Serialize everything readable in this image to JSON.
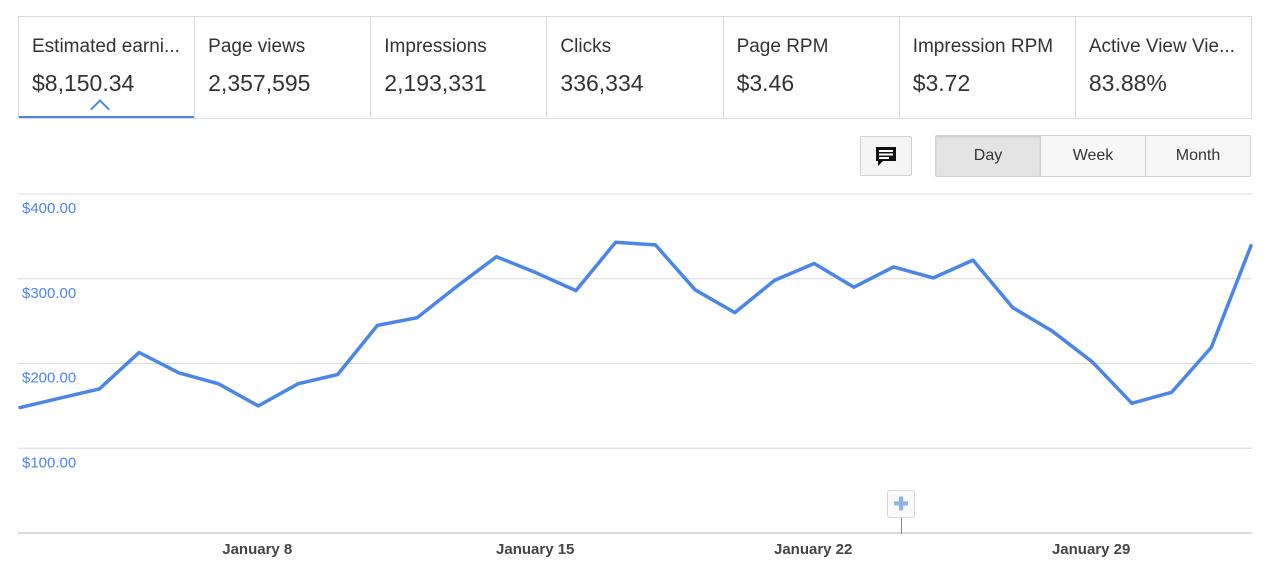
{
  "tabs": [
    {
      "label": "Estimated earni...",
      "value": "$8,150.34",
      "active": true
    },
    {
      "label": "Page views",
      "value": "2,357,595"
    },
    {
      "label": "Impressions",
      "value": "2,193,331"
    },
    {
      "label": "Clicks",
      "value": "336,334"
    },
    {
      "label": "Page RPM",
      "value": "$3.46"
    },
    {
      "label": "Impression RPM",
      "value": "$3.72"
    },
    {
      "label": "Active View Vie...",
      "value": "83.88%"
    }
  ],
  "controls": {
    "comment_icon": "comment-icon",
    "granularity": [
      "Day",
      "Week",
      "Month"
    ],
    "selected": "Day",
    "annotation_icon": "plus-icon"
  },
  "colors": {
    "accent": "#4a86e8",
    "grid": "#d9d9d9"
  },
  "chart_data": {
    "type": "line",
    "x": [
      2,
      3,
      4,
      5,
      6,
      7,
      8,
      9,
      10,
      11,
      12,
      13,
      14,
      15,
      16,
      17,
      18,
      19,
      20,
      21,
      22,
      23,
      24,
      25,
      26,
      27,
      28,
      29,
      30,
      31,
      32,
      33
    ],
    "ytick_labels": [
      "$400.00",
      "$300.00",
      "$200.00",
      "$100.00"
    ],
    "ytick_values": [
      400,
      300,
      200,
      100
    ],
    "xtick_labels": [
      "January 8",
      "January 15",
      "January 22",
      "January 29"
    ],
    "xtick_values": [
      8,
      15,
      22,
      29
    ],
    "ylim": [
      0,
      400
    ],
    "grid": true,
    "series": [
      {
        "values": [
          148,
          159,
          170,
          213,
          189,
          176,
          150,
          176,
          187,
          245,
          254,
          291,
          326,
          307,
          286,
          343,
          340,
          287,
          260,
          298,
          318,
          290,
          314,
          301,
          322,
          266,
          238,
          202,
          153,
          166,
          219,
          339
        ]
      }
    ]
  }
}
